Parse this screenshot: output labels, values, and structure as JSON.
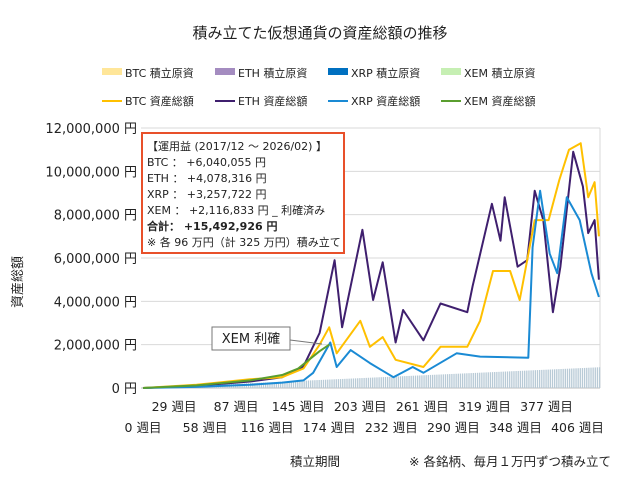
{
  "chart_data": {
    "type": "line",
    "title": "積み立てた仮想通貨の資産総額の推移",
    "xlabel": "積立期間",
    "ylabel": "資産総額",
    "note": "※ 各銘柄、毎月１万円ずつ積み立て",
    "ylim": [
      0,
      12000000
    ],
    "xlim": [
      0,
      427
    ],
    "grid": true,
    "legend_position": "top",
    "y_ticks": [
      "0 円",
      "2,000,000 円",
      "4,000,000 円",
      "6,000,000 円",
      "8,000,000 円",
      "10,000,000 円",
      "12,000,000 円"
    ],
    "x_ticks_row1": [
      "29 週目",
      "87 週目",
      "145 週目",
      "203 週目",
      "261 週目",
      "319 週目",
      "377 週目"
    ],
    "x_ticks_row2": [
      "0 週目",
      "58 週目",
      "116 週目",
      "174 週目",
      "232 週目",
      "290 週目",
      "348 週目",
      "406 週目"
    ],
    "legend": [
      {
        "label": "BTC  積立原資",
        "color": "#ffe699",
        "kind": "bar"
      },
      {
        "label": "ETH  積立原資",
        "color": "#a48cc0",
        "kind": "bar"
      },
      {
        "label": "XRP  積立原資",
        "color": "#0070c0",
        "kind": "bar"
      },
      {
        "label": "XEM  積立原資",
        "color": "#c6efb3",
        "kind": "bar"
      },
      {
        "label": "BTC  資産総額",
        "color": "#ffc000",
        "kind": "line"
      },
      {
        "label": "ETH  資産総額",
        "color": "#3f1f6e",
        "kind": "line"
      },
      {
        "label": "XRP  資産総額",
        "color": "#1a8ad4",
        "kind": "line"
      },
      {
        "label": "XEM  資産総額",
        "color": "#5a9e2f",
        "kind": "line"
      }
    ],
    "contribution": {
      "weeks": [
        0,
        427
      ],
      "values": [
        0,
        960000
      ],
      "color": "#b8cad6"
    },
    "series": [
      {
        "name": "ETH  資産総額",
        "color": "#3f1f6e",
        "x": [
          0,
          50,
          100,
          130,
          150,
          165,
          179,
          186,
          205,
          215,
          224,
          236,
          243,
          262,
          278,
          303,
          308,
          326,
          334,
          338,
          350,
          359,
          366,
          374,
          383,
          390,
          402,
          411,
          416,
          422,
          426
        ],
        "y": [
          0,
          100000,
          300000,
          500000,
          1000000,
          2540000,
          5900000,
          2800000,
          7300000,
          4060000,
          5800000,
          2100000,
          3600000,
          2200000,
          3900000,
          3500000,
          4700000,
          8500000,
          6800000,
          8800000,
          5600000,
          5900000,
          9100000,
          7750000,
          3500000,
          5600000,
          10900000,
          9300000,
          7150000,
          7750000,
          5000000
        ]
      },
      {
        "name": "BTC  資産総額",
        "color": "#ffc000",
        "x": [
          0,
          50,
          100,
          130,
          150,
          165,
          174,
          181,
          203,
          212,
          224,
          236,
          262,
          278,
          303,
          315,
          327,
          343,
          352,
          366,
          379,
          389,
          398,
          409,
          416,
          422,
          426
        ],
        "y": [
          0,
          150000,
          400000,
          500000,
          900000,
          2000000,
          2800000,
          1600000,
          3100000,
          1900000,
          2350000,
          1300000,
          970000,
          1900000,
          1900000,
          3100000,
          5400000,
          5400000,
          4060000,
          7750000,
          7750000,
          9600000,
          11000000,
          11300000,
          8800000,
          9500000,
          7000000
        ]
      },
      {
        "name": "XRP  資産総額",
        "color": "#1a8ad4",
        "x": [
          0,
          50,
          100,
          130,
          150,
          159,
          175,
          181,
          194,
          212,
          234,
          252,
          262,
          293,
          315,
          360,
          364,
          371,
          380,
          387,
          396,
          408,
          419,
          426
        ],
        "y": [
          0,
          50000,
          150000,
          250000,
          350000,
          700000,
          2100000,
          970000,
          1750000,
          1150000,
          500000,
          970000,
          700000,
          1600000,
          1450000,
          1400000,
          6500000,
          9100000,
          6200000,
          5300000,
          8800000,
          7750000,
          5300000,
          4200000
        ]
      },
      {
        "name": "XEM  資産総額",
        "color": "#5a9e2f",
        "x": [
          0,
          50,
          100,
          130,
          145,
          155,
          165,
          174
        ],
        "y": [
          0,
          120000,
          350000,
          600000,
          900000,
          1300000,
          1700000,
          2000000
        ]
      }
    ],
    "annotations": {
      "callout": "XEM 利確",
      "box_lines": [
        "【運用益 (2017/12 ～ 2026/02) 】",
        "BTC ： +6,040,055 円",
        "ETH ： +4,078,316 円",
        "XRP ： +3,257,722 円",
        "XEM ： +2,116,833 円 _ 利確済み",
        "合計： +15,492,926 円",
        "※ 各 96 万円（計 325 万円）積み立て"
      ],
      "box_border_color": "#e8502a"
    }
  }
}
